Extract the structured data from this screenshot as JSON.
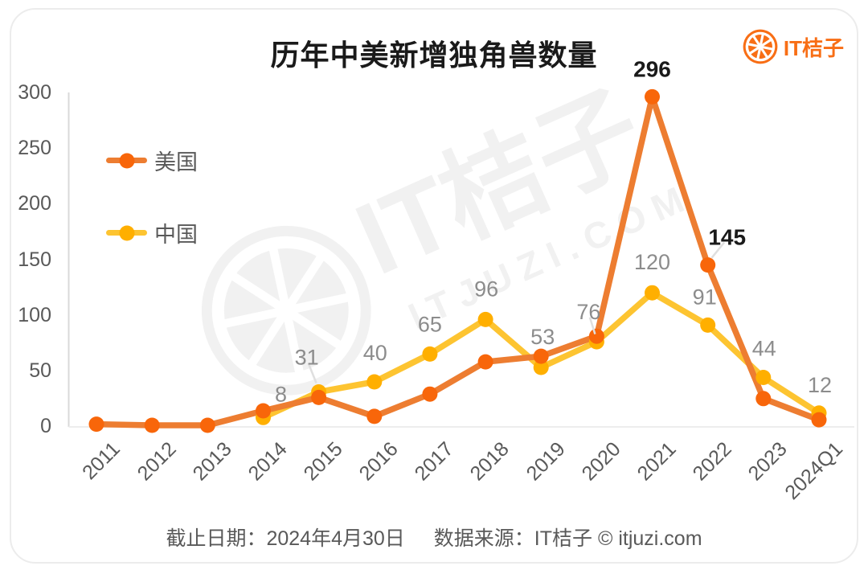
{
  "header": {
    "title": "历年中美新增独角兽数量",
    "logo_text": "IT桔子"
  },
  "watermark": {
    "text": "IT桔子",
    "subtext": "ITJUZI.COM"
  },
  "legend": {
    "items": [
      {
        "label": "美国"
      },
      {
        "label": "中国"
      }
    ]
  },
  "footer": {
    "date": "截止日期：2024年4月30日",
    "source": "数据来源：IT桔子 © itjuzi.com"
  },
  "colors": {
    "us_line": "#ED7D31",
    "us_dot": "#F8660A",
    "cn_line": "#FDC431",
    "cn_dot": "#FFAF00",
    "label_gray": "#8C8C8C",
    "label_black": "#1A1A1A",
    "axis_text": "#595959",
    "axis_line": "#D9D9D9",
    "baseline": "#EDEDED",
    "leader_line": "#DFDFDF",
    "brand_orange": "#F86E15",
    "watermark_gray": "#F1F1F1"
  },
  "chart_data": {
    "type": "line",
    "title": "历年中美新增独角兽数量",
    "categories": [
      "2011",
      "2012",
      "2013",
      "2014",
      "2015",
      "2016",
      "2017",
      "2018",
      "2019",
      "2020",
      "2021",
      "2022",
      "2023",
      "2024Q1"
    ],
    "y_ticks": [
      0,
      50,
      100,
      150,
      200,
      250,
      300
    ],
    "ylim": [
      0,
      300
    ],
    "grid": false,
    "legend_position": "upper-left",
    "series": [
      {
        "name": "美国",
        "line_color": "#ED7D31",
        "dot_color": "#F8660A",
        "values": [
          2,
          1,
          1,
          14,
          26,
          9,
          29,
          58,
          63,
          81,
          296,
          145,
          25,
          6
        ],
        "unlabeled_values_are_estimates": true,
        "value_labels": [
          {
            "index": 10,
            "text": "296",
            "dx": 0,
            "dy": -35,
            "color": "#1A1A1A",
            "bold": true,
            "leader": false
          },
          {
            "index": 11,
            "text": "145",
            "dx": 24,
            "dy": -35,
            "color": "#1A1A1A",
            "bold": true,
            "leader": true
          }
        ]
      },
      {
        "name": "中国",
        "line_color": "#FDC431",
        "dot_color": "#FFAF00",
        "values": [
          null,
          null,
          null,
          8,
          31,
          40,
          65,
          96,
          53,
          76,
          120,
          91,
          44,
          12
        ],
        "unlabeled_values_are_estimates": false,
        "value_labels": [
          {
            "index": 3,
            "text": "8",
            "dx": 22,
            "dy": -30,
            "color": "#8C8C8C",
            "bold": false,
            "leader": false
          },
          {
            "index": 4,
            "text": "31",
            "dx": -15,
            "dy": -44,
            "color": "#8C8C8C",
            "bold": false,
            "leader": true
          },
          {
            "index": 5,
            "text": "40",
            "dx": 1,
            "dy": -37,
            "color": "#8C8C8C",
            "bold": false,
            "leader": false
          },
          {
            "index": 6,
            "text": "65",
            "dx": 0,
            "dy": -38,
            "color": "#8C8C8C",
            "bold": false,
            "leader": false
          },
          {
            "index": 7,
            "text": "96",
            "dx": 1,
            "dy": -39,
            "color": "#8C8C8C",
            "bold": false,
            "leader": false
          },
          {
            "index": 8,
            "text": "53",
            "dx": 2,
            "dy": -39,
            "color": "#8C8C8C",
            "bold": false,
            "leader": false
          },
          {
            "index": 9,
            "text": "76",
            "dx": -10,
            "dy": -38,
            "color": "#8C8C8C",
            "bold": false,
            "leader": true
          },
          {
            "index": 10,
            "text": "120",
            "dx": 0,
            "dy": -39,
            "color": "#8C8C8C",
            "bold": false,
            "leader": false
          },
          {
            "index": 11,
            "text": "91",
            "dx": -4,
            "dy": -36,
            "color": "#8C8C8C",
            "bold": false,
            "leader": false
          },
          {
            "index": 12,
            "text": "44",
            "dx": 1,
            "dy": -37,
            "color": "#8C8C8C",
            "bold": false,
            "leader": false
          },
          {
            "index": 13,
            "text": "12",
            "dx": 1,
            "dy": -36,
            "color": "#8C8C8C",
            "bold": false,
            "leader": false
          }
        ]
      }
    ]
  }
}
